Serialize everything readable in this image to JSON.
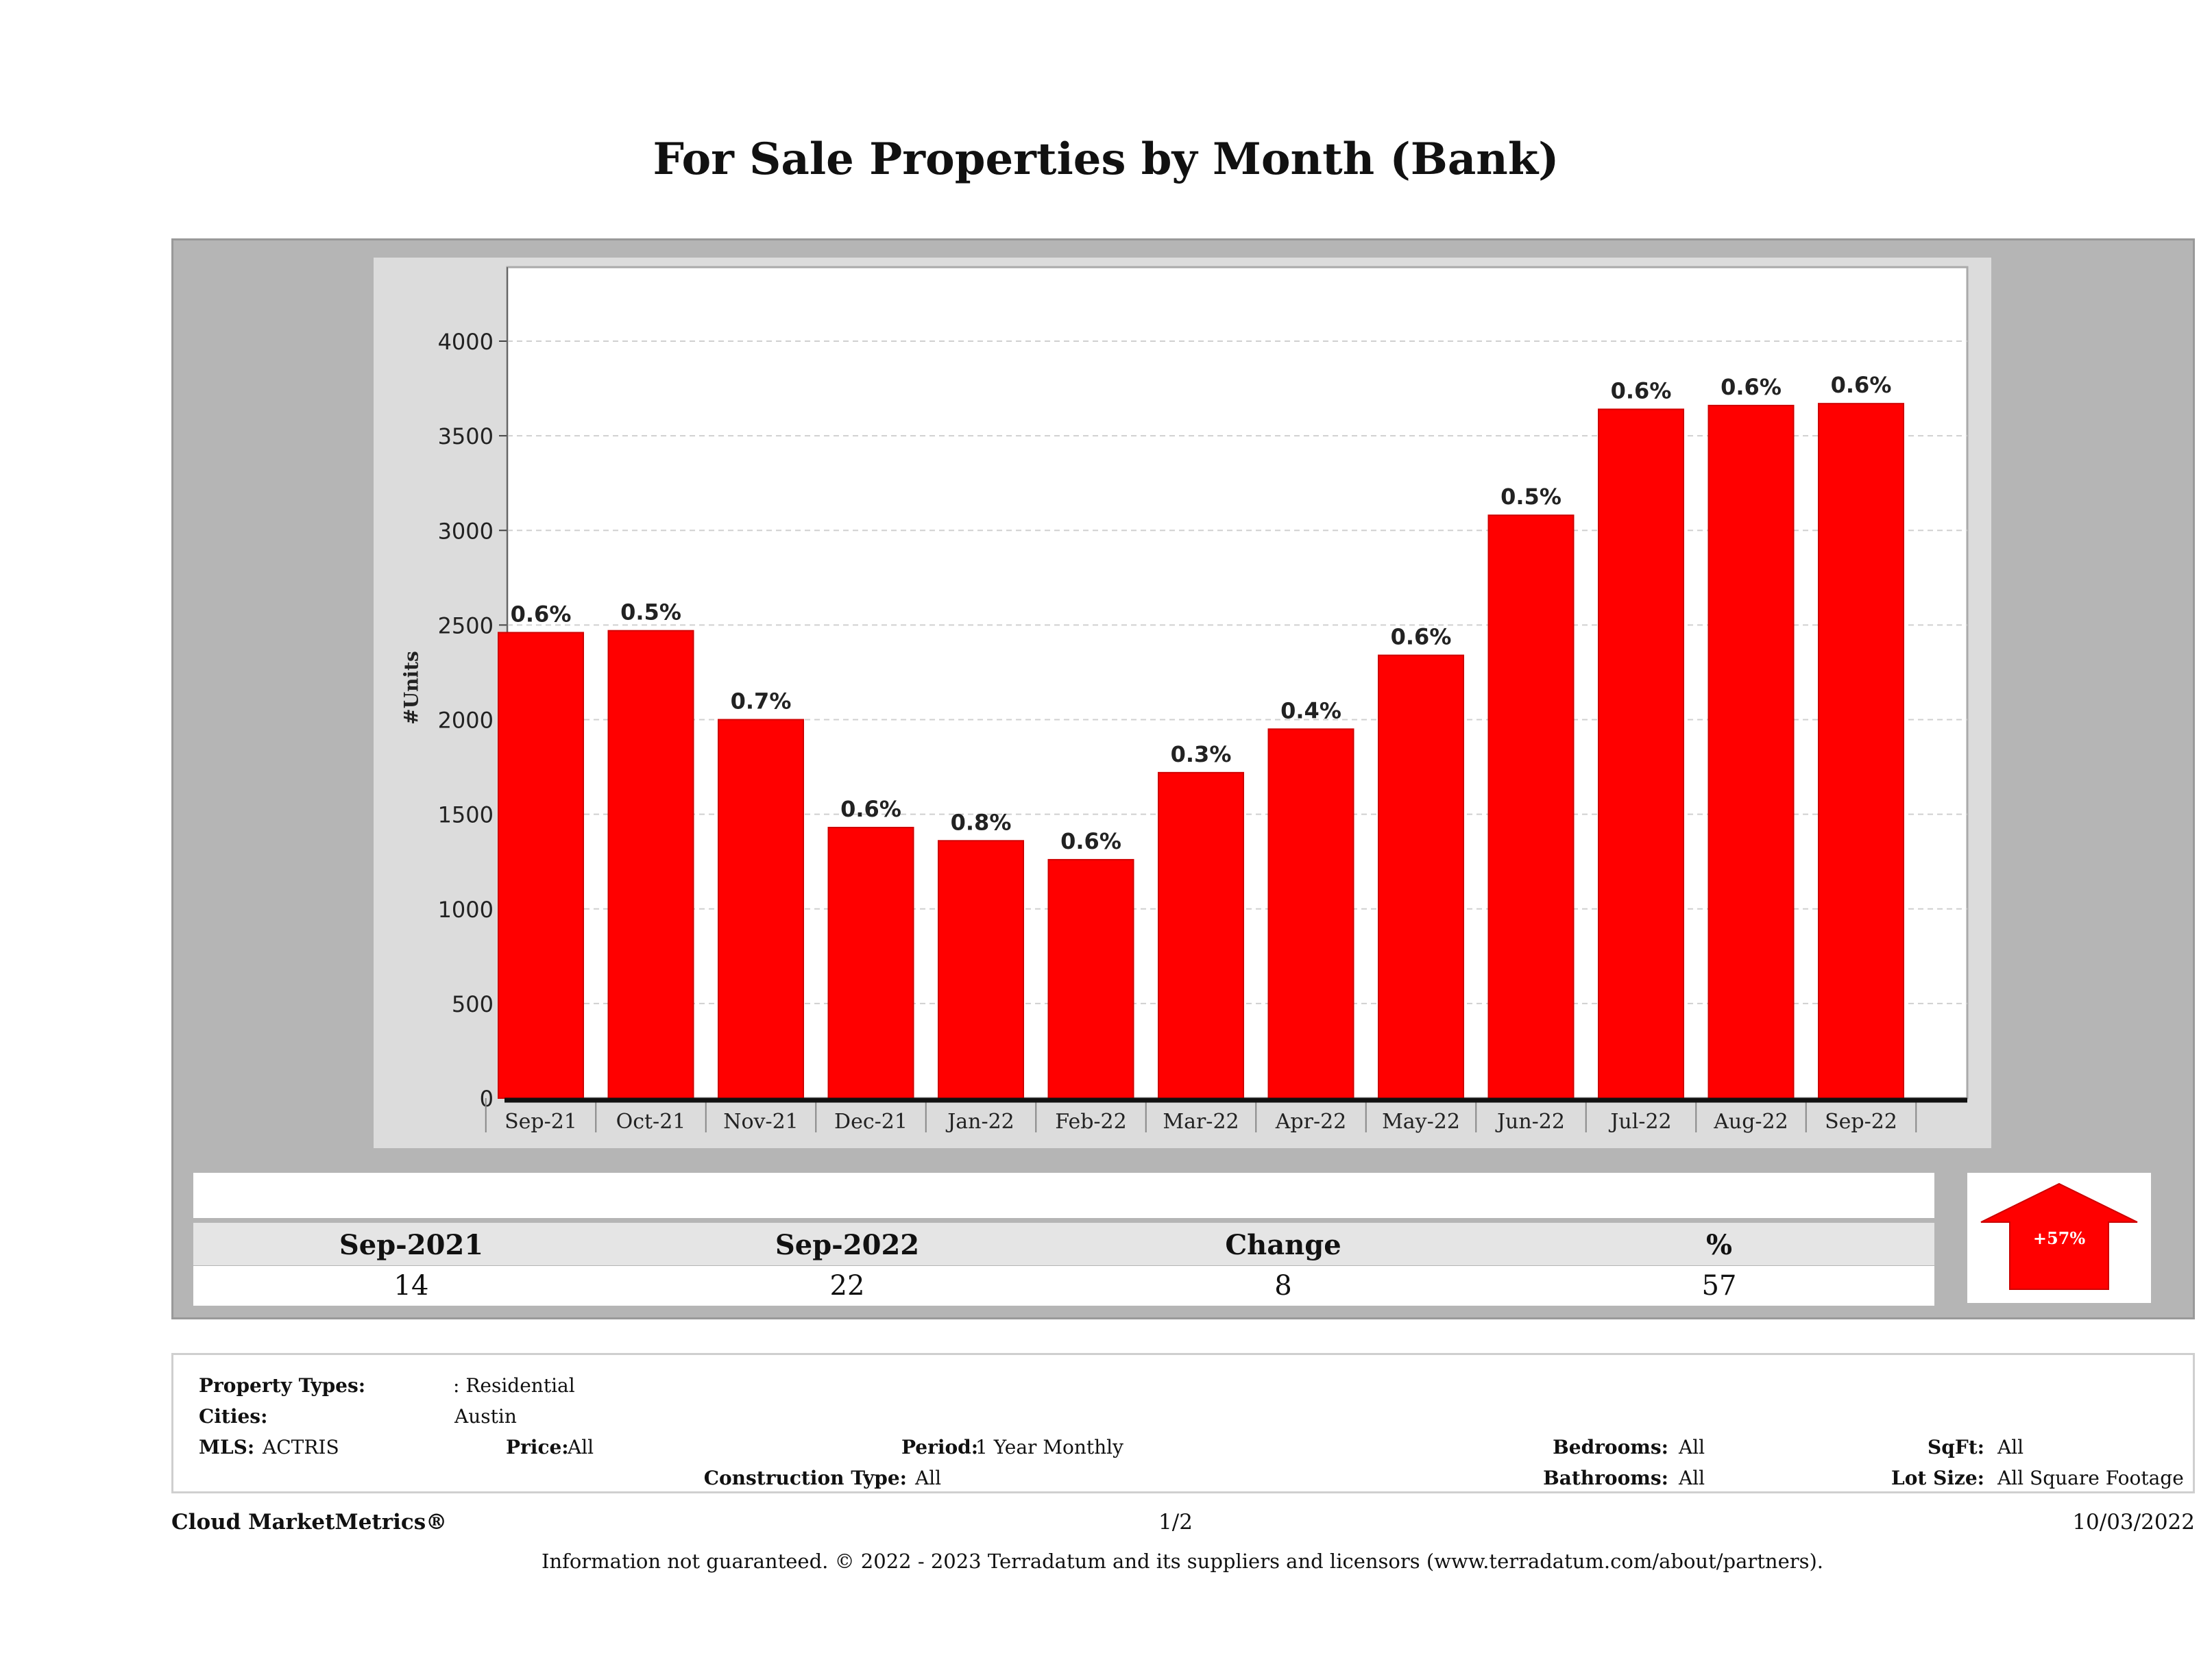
{
  "title": "For Sale Properties by Month (Bank)",
  "chart_data": {
    "type": "bar",
    "title": "For Sale Properties by Month (Bank)",
    "xlabel": "",
    "ylabel": "#Units",
    "ylim": [
      0,
      4000
    ],
    "yticks": [
      0,
      500,
      1000,
      1500,
      2000,
      2500,
      3000,
      3500,
      4000
    ],
    "grid": true,
    "categories": [
      "Sep-21",
      "Oct-21",
      "Nov-21",
      "Dec-21",
      "Jan-22",
      "Feb-22",
      "Mar-22",
      "Apr-22",
      "May-22",
      "Jun-22",
      "Jul-22",
      "Aug-22",
      "Sep-22"
    ],
    "values": [
      2460,
      2470,
      2000,
      1430,
      1360,
      1260,
      1720,
      1950,
      2340,
      3080,
      3640,
      3660,
      3670
    ],
    "data_labels": [
      "0.6%",
      "0.5%",
      "0.7%",
      "0.6%",
      "0.8%",
      "0.6%",
      "0.3%",
      "0.4%",
      "0.6%",
      "0.5%",
      "0.6%",
      "0.6%",
      "0.6%"
    ],
    "bar_color": "#ff0000"
  },
  "summary": {
    "headers": [
      "Sep-2021",
      "Sep-2022",
      "Change",
      "%"
    ],
    "values": [
      "14",
      "22",
      "8",
      "57"
    ],
    "badge": "+57%",
    "badge_color": "#ff0000"
  },
  "filters": {
    "property_types_label": "Property Types:",
    "property_types_value": ": Residential",
    "cities_label": "Cities:",
    "cities_value": "Austin",
    "mls_label": "MLS:",
    "mls_value": "ACTRIS",
    "price_label": "Price:",
    "price_value": "All",
    "period_label": "Period:",
    "period_value": "1 Year Monthly",
    "bedrooms_label": "Bedrooms:",
    "bedrooms_value": "All",
    "sqft_label": "SqFt:",
    "sqft_value": "All",
    "construction_label": "Construction Type:",
    "construction_value": "All",
    "bathrooms_label": "Bathrooms:",
    "bathrooms_value": "All",
    "lotsize_label": "Lot Size:",
    "lotsize_value": "All Square Footage"
  },
  "footer": {
    "brand": "Cloud MarketMetrics®",
    "page": "1/2",
    "date": "10/03/2022",
    "disclaimer": "Information not guaranteed. © 2022 - 2023 Terradatum and its suppliers and licensors (www.terradatum.com/about/partners)."
  }
}
